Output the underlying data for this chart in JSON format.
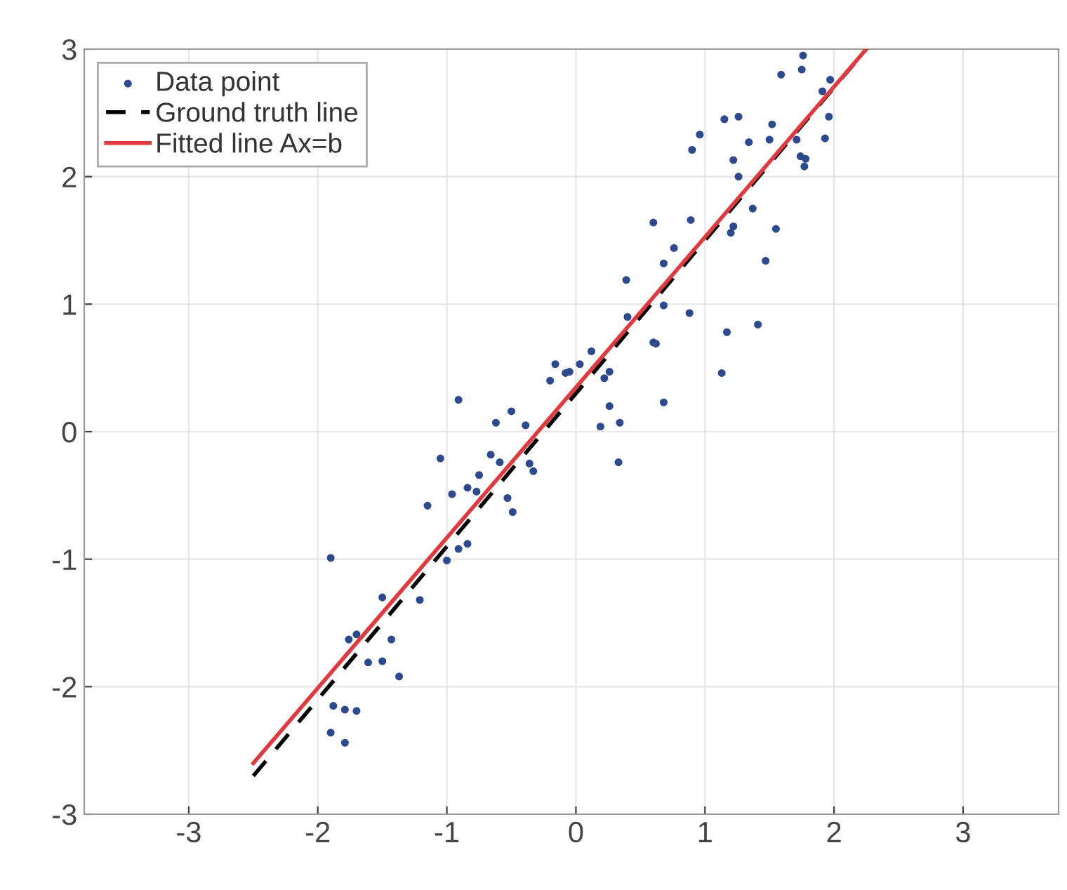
{
  "chart_data": {
    "type": "scatter",
    "xlim": [
      -3.81,
      3.74
    ],
    "ylim": [
      -3,
      3
    ],
    "xticks": [
      -3,
      -2,
      -1,
      0,
      1,
      2,
      3
    ],
    "yticks": [
      -3,
      -2,
      -1,
      0,
      1,
      2,
      3
    ],
    "grid": true,
    "legend": "top left",
    "series": [
      {
        "name": "Data point",
        "marker": "circle",
        "color": "#2e4a8f",
        "x": [
          1.76,
          1.75,
          1.59,
          1.97,
          1.91,
          1.96,
          1.93,
          1.15,
          1.26,
          0.96,
          0.9,
          1.52,
          1.34,
          1.5,
          1.71,
          1.22,
          1.74,
          1.78,
          1.77,
          1.26,
          1.37,
          1.55,
          1.22,
          1.2,
          0.6,
          0.89,
          0.76,
          0.68,
          1.47,
          0.39,
          0.4,
          0.68,
          0.88,
          0.6,
          0.62,
          1.17,
          1.41,
          1.13,
          0.68,
          0.26,
          0.19,
          0.34,
          0.26,
          0.22,
          0.12,
          -0.16,
          -0.05,
          -0.08,
          0.03,
          -0.2,
          -0.91,
          -0.5,
          -0.62,
          -0.39,
          -1.05,
          -0.66,
          -0.59,
          -0.75,
          -0.84,
          -0.77,
          -0.96,
          -0.53,
          -0.49,
          -1.15,
          -0.36,
          -0.33,
          0.33,
          -1.9,
          -0.84,
          -0.91,
          -1.0,
          -1.5,
          -1.21,
          -1.76,
          -1.7,
          -1.43,
          -1.61,
          -1.5,
          -1.37,
          -1.88,
          -1.79,
          -1.7,
          -1.9,
          -1.79
        ],
        "values": [
          2.95,
          2.84,
          2.8,
          2.76,
          2.67,
          2.47,
          2.3,
          2.45,
          2.47,
          2.33,
          2.21,
          2.41,
          2.27,
          2.29,
          2.29,
          2.13,
          2.16,
          2.14,
          2.08,
          2.0,
          1.75,
          1.59,
          1.61,
          1.56,
          1.64,
          1.66,
          1.44,
          1.32,
          1.34,
          1.19,
          0.9,
          0.99,
          0.93,
          0.7,
          0.69,
          0.78,
          0.84,
          0.46,
          0.23,
          0.2,
          0.04,
          0.07,
          0.47,
          0.42,
          0.63,
          0.53,
          0.47,
          0.46,
          0.53,
          0.4,
          0.25,
          0.16,
          0.07,
          0.05,
          -0.21,
          -0.18,
          -0.24,
          -0.34,
          -0.44,
          -0.47,
          -0.49,
          -0.52,
          -0.63,
          -0.58,
          -0.25,
          -0.31,
          -0.24,
          -0.99,
          -0.88,
          -0.92,
          -1.01,
          -1.3,
          -1.32,
          -1.63,
          -1.59,
          -1.63,
          -1.81,
          -1.8,
          -1.92,
          -2.15,
          -2.18,
          -2.19,
          -2.36,
          -2.44
        ]
      },
      {
        "name": "Ground truth line",
        "type": "line",
        "line_style": "dashed",
        "color": "#000000",
        "x": [
          -2.5,
          2.25
        ],
        "values": [
          -2.7,
          3.0
        ]
      },
      {
        "name": "Fitted line Ax=b",
        "type": "line",
        "line_style": "solid",
        "color": "#e03a3e",
        "x": [
          -2.5,
          2.25
        ],
        "values": [
          -2.6,
          3.0
        ]
      }
    ]
  }
}
